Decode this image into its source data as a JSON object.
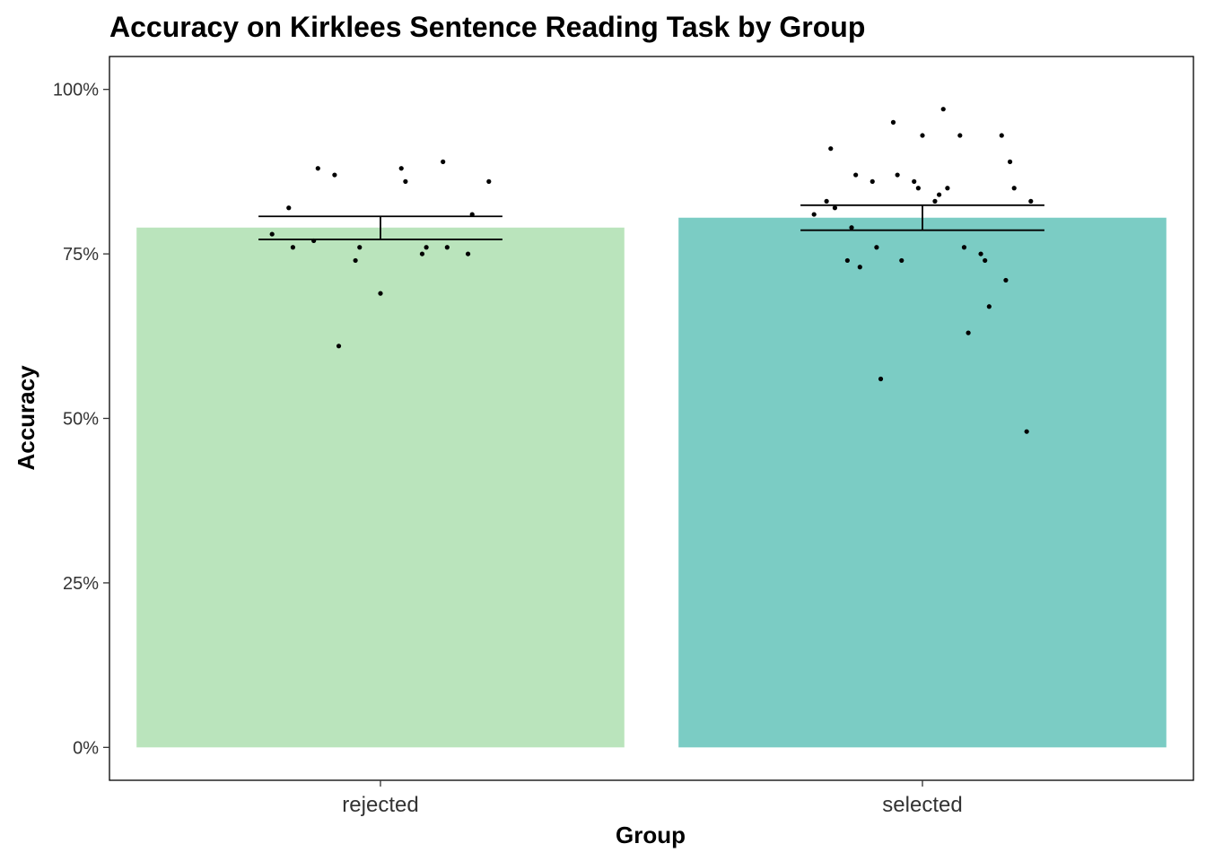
{
  "chart_data": {
    "type": "bar",
    "title": "Accuracy on Kirklees Sentence Reading Task by Group",
    "xlabel": "Group",
    "ylabel": "Accuracy",
    "ylim": [
      -0.05,
      1.05
    ],
    "yticks": [
      {
        "value": 0,
        "label": "0%"
      },
      {
        "value": 0.25,
        "label": "25%"
      },
      {
        "value": 0.5,
        "label": "50%"
      },
      {
        "value": 0.75,
        "label": "75%"
      },
      {
        "value": 1.0,
        "label": "100%"
      }
    ],
    "categories": [
      "rejected",
      "selected"
    ],
    "values": [
      0.79,
      0.805
    ],
    "colors": [
      "#bae4bc",
      "#7bccc4"
    ],
    "errors": [
      {
        "lower": 0.772,
        "upper": 0.807
      },
      {
        "lower": 0.786,
        "upper": 0.824
      }
    ],
    "points": [
      [
        0.88,
        0.81,
        0.86,
        0.61,
        0.78,
        0.76,
        0.76,
        0.76,
        0.76,
        0.69,
        0.77,
        0.75,
        0.88,
        0.87,
        0.86,
        0.75,
        0.74,
        0.82,
        0.89
      ],
      [
        0.73,
        0.85,
        0.85,
        0.56,
        0.81,
        0.63,
        0.74,
        0.82,
        0.67,
        0.93,
        0.87,
        0.89,
        0.97,
        0.76,
        0.83,
        0.76,
        0.87,
        0.91,
        0.74,
        0.85,
        0.79,
        0.71,
        0.84,
        0.86,
        0.48,
        0.93,
        0.95,
        0.83,
        0.75,
        0.86,
        0.74,
        0.93,
        0.83
      ]
    ],
    "grid": false,
    "legend": "none"
  }
}
